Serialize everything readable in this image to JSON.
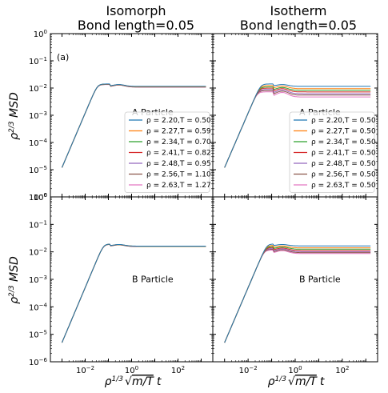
{
  "chart_data": {
    "type": "line",
    "titles": {
      "left_line1": "Isomorph",
      "left_line2": "Bond length=0.05",
      "right_line1": "Isotherm",
      "right_line2": "Bond length=0.05"
    },
    "ylabel": "ρ^{2/3} MSD",
    "xlabel": "ρ^{1/3} √(m/T) t",
    "xscale": "log",
    "yscale": "log",
    "ylim": [
      1e-06,
      1
    ],
    "xlim_log10": [
      -3.5,
      3.5
    ],
    "ytick_labels": [
      "10^0",
      "10^-1",
      "10^-2",
      "10^-3",
      "10^-4",
      "10^-5",
      "10^-6"
    ],
    "xtick_labels": [
      "10^-2",
      "10^0",
      "10^2"
    ],
    "panel_tag": "(a)",
    "colors": [
      "#1f77b4",
      "#ff7f0e",
      "#2ca02c",
      "#d62728",
      "#9467bd",
      "#8c564b",
      "#e377c2"
    ],
    "panels": [
      {
        "name": "top-left",
        "annotation": "A Particle",
        "legend": [
          "ρ = 2.20,T = 0.50",
          "ρ = 2.27,T = 0.59",
          "ρ = 2.34,T = 0.70",
          "ρ = 2.41,T = 0.82",
          "ρ = 2.48,T = 0.95",
          "ρ = 2.56,T = 1.10",
          "ρ = 2.63,T = 1.27"
        ],
        "plateaus": [
          0.0115,
          0.0113,
          0.0112,
          0.0111,
          0.011,
          0.0109,
          0.0108
        ],
        "peaks": [
          0.0135,
          0.0134,
          0.0133,
          0.0132,
          0.0131,
          0.013,
          0.0129
        ],
        "start_y": 1.2e-05
      },
      {
        "name": "top-right",
        "annotation": "A Particle",
        "legend": [
          "ρ = 2.20,T = 0.50",
          "ρ = 2.27,T = 0.50",
          "ρ = 2.34,T = 0.50",
          "ρ = 2.41,T = 0.50",
          "ρ = 2.48,T = 0.50",
          "ρ = 2.56,T = 0.50",
          "ρ = 2.63,T = 0.50"
        ],
        "plateaus": [
          0.0115,
          0.0095,
          0.0082,
          0.0072,
          0.0062,
          0.0055,
          0.0047
        ],
        "peaks": [
          0.0135,
          0.0118,
          0.0105,
          0.0095,
          0.0085,
          0.0077,
          0.0069
        ],
        "start_y": 1.2e-05
      },
      {
        "name": "bottom-left",
        "annotation": "B Particle",
        "legend": [],
        "plateaus": [
          0.0162,
          0.0161,
          0.016,
          0.0159,
          0.0158,
          0.0157,
          0.0156
        ],
        "peaks": [
          0.0185,
          0.0184,
          0.0183,
          0.0182,
          0.0181,
          0.018,
          0.0179
        ],
        "start_y": 5e-06
      },
      {
        "name": "bottom-right",
        "annotation": "B Particle",
        "legend": [],
        "plateaus": [
          0.0165,
          0.014,
          0.0125,
          0.0112,
          0.0102,
          0.0094,
          0.0087
        ],
        "peaks": [
          0.0185,
          0.0165,
          0.015,
          0.0138,
          0.0128,
          0.0119,
          0.0111
        ],
        "start_y": 5e-06
      }
    ]
  }
}
